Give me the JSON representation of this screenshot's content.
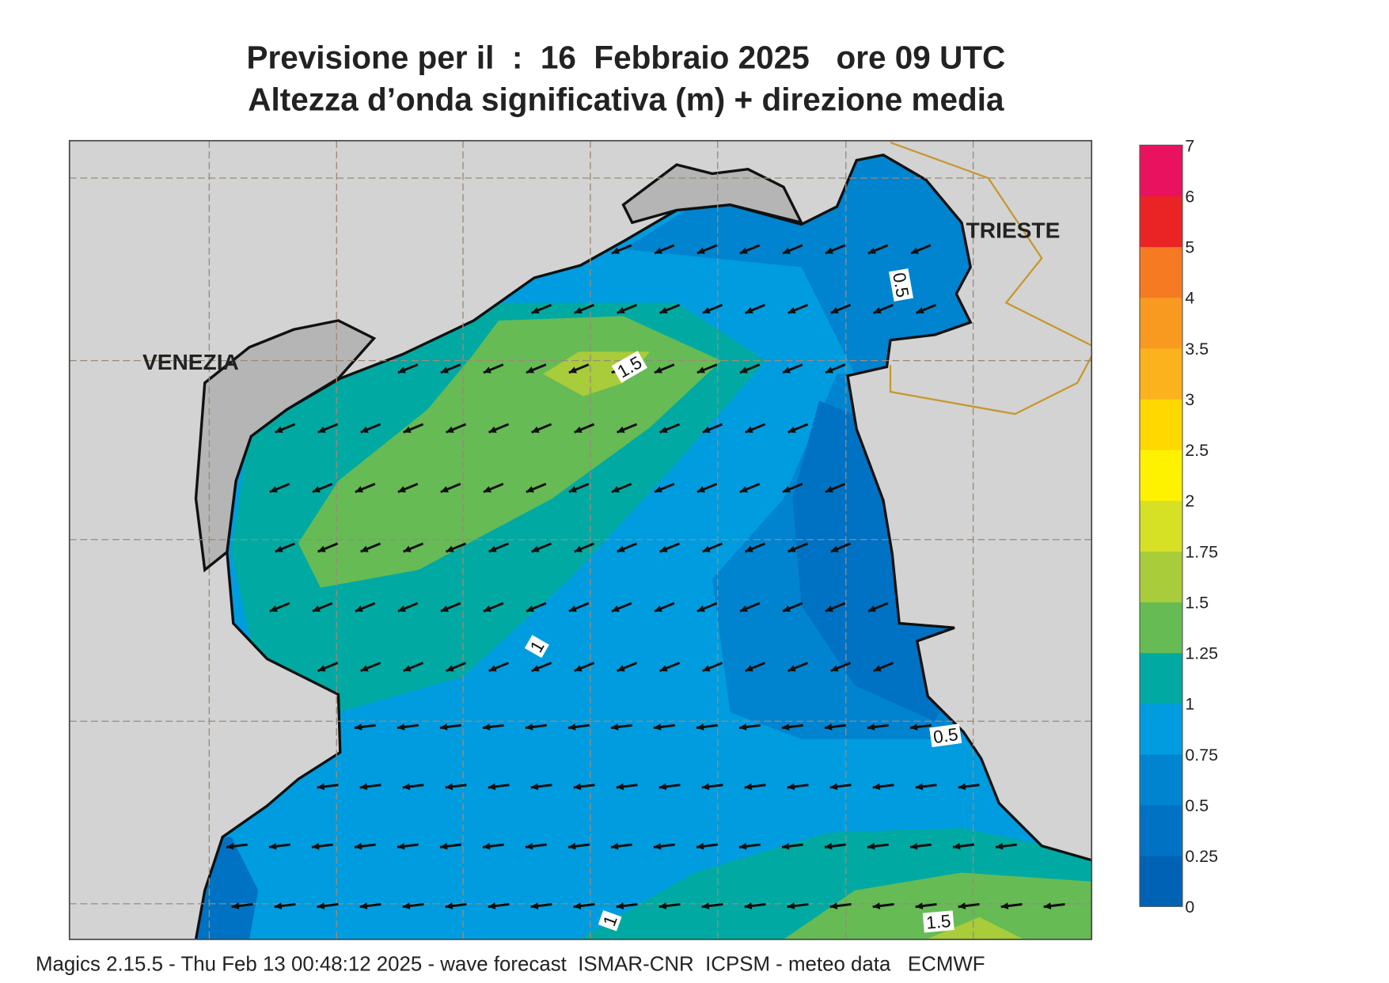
{
  "header": {
    "title": "Previsione per il  :  16  Febbraio 2025   ore 09 UTC",
    "subtitle": "Altezza d’onda significativa (m) + direzione media"
  },
  "map": {
    "places": [
      "VENEZIA",
      "TRIESTE"
    ],
    "contour_labels": [
      "0.5",
      "1.5",
      "1",
      "0.5",
      "1",
      "1.5"
    ]
  },
  "legend": {
    "labels": [
      "0",
      "0.25",
      "0.5",
      "0.75",
      "1",
      "1.25",
      "1.5",
      "1.75",
      "2",
      "2.5",
      "3",
      "3.5",
      "4",
      "5",
      "6",
      "7"
    ],
    "colors": [
      "#0062b4",
      "#0072c4",
      "#0084d0",
      "#009ce0",
      "#00aaa2",
      "#66bb55",
      "#a8cc3a",
      "#d6e024",
      "#fff200",
      "#ffd800",
      "#fbb21c",
      "#f99a20",
      "#f57a22",
      "#ea2424",
      "#e8125e"
    ]
  },
  "footer": "Magics 2.15.5 - Thu Feb 13 00:48:12 2025 - wave forecast  ISMAR-CNR  ICPSM - meteo data   ECMWF"
}
